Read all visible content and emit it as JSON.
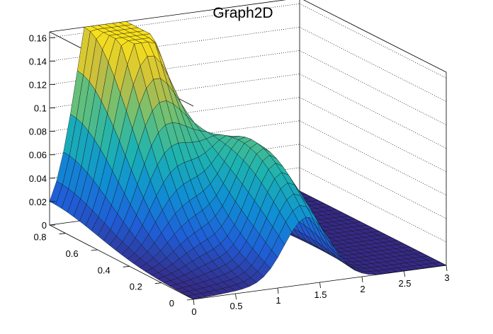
{
  "chart_data": {
    "type": "surface3d",
    "title": "Graph2D",
    "x_range": [
      0,
      3
    ],
    "y_range": [
      0,
      0.9
    ],
    "z_range": [
      0,
      0.165
    ],
    "x_ticks": [
      {
        "value": 0,
        "label": "0"
      },
      {
        "value": 0.5,
        "label": "0.5"
      },
      {
        "value": 1,
        "label": "1"
      },
      {
        "value": 1.5,
        "label": "1.5"
      },
      {
        "value": 2,
        "label": "2"
      },
      {
        "value": 2.5,
        "label": "2.5"
      },
      {
        "value": 3,
        "label": "3"
      }
    ],
    "y_ticks": [
      {
        "value": 0,
        "label": "0"
      },
      {
        "value": 0.2,
        "label": "0.2"
      },
      {
        "value": 0.4,
        "label": "0.4"
      },
      {
        "value": 0.6,
        "label": "0.6"
      },
      {
        "value": 0.8,
        "label": "0.8"
      }
    ],
    "z_ticks": [
      {
        "value": 0,
        "label": "0"
      },
      {
        "value": 0.02,
        "label": "0.02"
      },
      {
        "value": 0.04,
        "label": "0.04"
      },
      {
        "value": 0.06,
        "label": "0.06"
      },
      {
        "value": 0.08,
        "label": "0.08"
      },
      {
        "value": 0.1,
        "label": "0.1"
      },
      {
        "value": 0.12,
        "label": "0.12"
      },
      {
        "value": 0.14,
        "label": "0.14"
      },
      {
        "value": 0.16,
        "label": "0.16"
      }
    ],
    "peaks": [
      {
        "x": 0.55,
        "y": 0.9,
        "z": 0.16
      },
      {
        "x": 0.9,
        "y": 0.9,
        "z": 0.12
      },
      {
        "x": 1.35,
        "y": 0.3,
        "z": 0.095
      }
    ],
    "grid": true,
    "colormap": [
      "#352a87",
      "#1f5fd8",
      "#0f8fd4",
      "#1db3b0",
      "#65c07a",
      "#c9bd3d",
      "#f9e11a"
    ]
  }
}
